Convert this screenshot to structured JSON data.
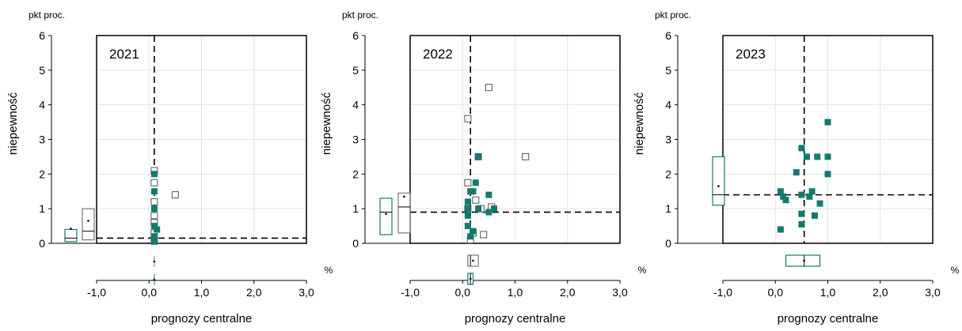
{
  "colors": {
    "green": "#137a6e",
    "grid": "#e3e3e3",
    "open_marker_edge": "#555555",
    "box_grey": "#777777"
  },
  "chart_data": [
    {
      "type": "scatter",
      "title": "2021",
      "xlabel": "prognozy centralne",
      "ylabel": "niepewność",
      "y_unit_label": "pkt proc.",
      "x_unit_label": "%",
      "xlim": [
        -1.0,
        3.0
      ],
      "ylim": [
        0,
        6
      ],
      "x_ticks": [
        -1.0,
        0.0,
        1.0,
        2.0,
        3.0
      ],
      "x_tick_labels": [
        "-1,0",
        "0,0",
        "1,0",
        "2,0",
        "3,0"
      ],
      "y_ticks": [
        0,
        1,
        2,
        3,
        4,
        5,
        6
      ],
      "y_tick_labels": [
        "0",
        "1",
        "2",
        "3",
        "4",
        "5",
        "6"
      ],
      "grid": true,
      "median_x": 0.1,
      "median_y": 0.15,
      "series": [
        {
          "marker": "filled",
          "points": [
            [
              0.1,
              0.05
            ],
            [
              0.1,
              0.2
            ],
            [
              0.1,
              0.5
            ],
            [
              0.1,
              1.0
            ],
            [
              0.1,
              1.5
            ],
            [
              0.1,
              2.0
            ],
            [
              0.15,
              0.4
            ]
          ]
        },
        {
          "marker": "open",
          "points": [
            [
              0.1,
              0.1
            ],
            [
              0.1,
              0.3
            ],
            [
              0.1,
              0.6
            ],
            [
              0.1,
              0.8
            ],
            [
              0.1,
              1.2
            ],
            [
              0.1,
              1.75
            ],
            [
              0.1,
              2.1
            ],
            [
              0.5,
              1.4
            ]
          ]
        }
      ],
      "box_y": [
        {
          "marker": "filled",
          "min": 0.05,
          "median": 0.15,
          "max": 0.4,
          "mean": 0.42
        },
        {
          "marker": "open",
          "min": 0.1,
          "median": 0.35,
          "max": 1.0,
          "mean": 0.65
        }
      ],
      "box_x": [
        {
          "marker": "open",
          "min": 0.1,
          "median": 0.1,
          "max": 0.1,
          "mean": 0.1
        },
        {
          "marker": "filled",
          "min": 0.1,
          "median": 0.1,
          "max": 0.1,
          "mean": 0.1
        }
      ]
    },
    {
      "type": "scatter",
      "title": "2022",
      "xlabel": "prognozy centralne",
      "ylabel": "niepewność",
      "y_unit_label": "pkt proc.",
      "x_unit_label": "%",
      "xlim": [
        -1.0,
        3.0
      ],
      "ylim": [
        0,
        6
      ],
      "x_ticks": [
        -1.0,
        0.0,
        1.0,
        2.0,
        3.0
      ],
      "x_tick_labels": [
        "-1,0",
        "0,0",
        "1,0",
        "2,0",
        "3,0"
      ],
      "y_ticks": [
        0,
        1,
        2,
        3,
        4,
        5,
        6
      ],
      "y_tick_labels": [
        "0",
        "1",
        "2",
        "3",
        "4",
        "5",
        "6"
      ],
      "grid": true,
      "median_x": 0.15,
      "median_y": 0.9,
      "series": [
        {
          "marker": "filled",
          "points": [
            [
              0.1,
              0.5
            ],
            [
              0.1,
              0.8
            ],
            [
              0.1,
              1.0
            ],
            [
              0.1,
              1.2
            ],
            [
              0.15,
              1.5
            ],
            [
              0.15,
              0.2
            ],
            [
              0.2,
              0.35
            ],
            [
              0.25,
              1.75
            ],
            [
              0.3,
              2.5
            ],
            [
              0.5,
              1.4
            ],
            [
              0.5,
              0.9
            ],
            [
              0.6,
              1.0
            ],
            [
              0.3,
              1.0
            ],
            [
              0.2,
              1.5
            ]
          ]
        },
        {
          "marker": "open",
          "points": [
            [
              0.1,
              1.75
            ],
            [
              0.15,
              0.1
            ],
            [
              0.2,
              0.3
            ],
            [
              0.25,
              1.25
            ],
            [
              0.3,
              2.5
            ],
            [
              0.35,
              1.0
            ],
            [
              0.4,
              0.25
            ],
            [
              0.5,
              4.5
            ],
            [
              0.55,
              1.05
            ],
            [
              1.2,
              2.5
            ],
            [
              0.1,
              3.6
            ],
            [
              0.1,
              1.0
            ]
          ]
        }
      ],
      "box_y": [
        {
          "marker": "filled",
          "min": 0.25,
          "median": 0.9,
          "max": 1.3,
          "mean": 0.85
        },
        {
          "marker": "open",
          "min": 0.3,
          "median": 1.05,
          "max": 1.45,
          "mean": 1.35
        }
      ],
      "box_x": [
        {
          "marker": "open",
          "min": 0.1,
          "median": 0.15,
          "max": 0.3,
          "mean": 0.2
        },
        {
          "marker": "filled",
          "min": 0.1,
          "median": 0.15,
          "max": 0.2,
          "mean": 0.15
        }
      ]
    },
    {
      "type": "scatter",
      "title": "2023",
      "xlabel": "prognozy centralne",
      "ylabel": "niepewność",
      "y_unit_label": "pkt proc.",
      "x_unit_label": "%",
      "xlim": [
        -1.0,
        3.0
      ],
      "ylim": [
        0,
        6
      ],
      "x_ticks": [
        -1.0,
        0.0,
        1.0,
        2.0,
        3.0
      ],
      "x_tick_labels": [
        "-1,0",
        "0,0",
        "1,0",
        "2,0",
        "3,0"
      ],
      "y_ticks": [
        0,
        1,
        2,
        3,
        4,
        5,
        6
      ],
      "y_tick_labels": [
        "0",
        "1",
        "2",
        "3",
        "4",
        "5",
        "6"
      ],
      "grid": true,
      "median_x": 0.55,
      "median_y": 1.4,
      "series": [
        {
          "marker": "filled",
          "points": [
            [
              0.1,
              1.5
            ],
            [
              0.1,
              0.4
            ],
            [
              0.15,
              1.35
            ],
            [
              0.2,
              1.25
            ],
            [
              0.4,
              2.05
            ],
            [
              0.5,
              2.75
            ],
            [
              0.5,
              1.4
            ],
            [
              0.5,
              0.85
            ],
            [
              0.5,
              0.55
            ],
            [
              0.6,
              2.5
            ],
            [
              0.65,
              1.35
            ],
            [
              0.7,
              1.5
            ],
            [
              0.75,
              0.8
            ],
            [
              0.8,
              2.5
            ],
            [
              0.85,
              1.15
            ],
            [
              1.0,
              2.5
            ],
            [
              1.0,
              3.5
            ],
            [
              1.0,
              2.0
            ]
          ]
        }
      ],
      "box_y": [
        {
          "marker": "filled",
          "min": 1.1,
          "median": 1.4,
          "max": 2.5,
          "mean": 1.65
        }
      ],
      "box_x": [
        {
          "marker": "filled",
          "min": 0.2,
          "median": 0.55,
          "max": 0.85,
          "mean": 0.55
        }
      ]
    }
  ]
}
